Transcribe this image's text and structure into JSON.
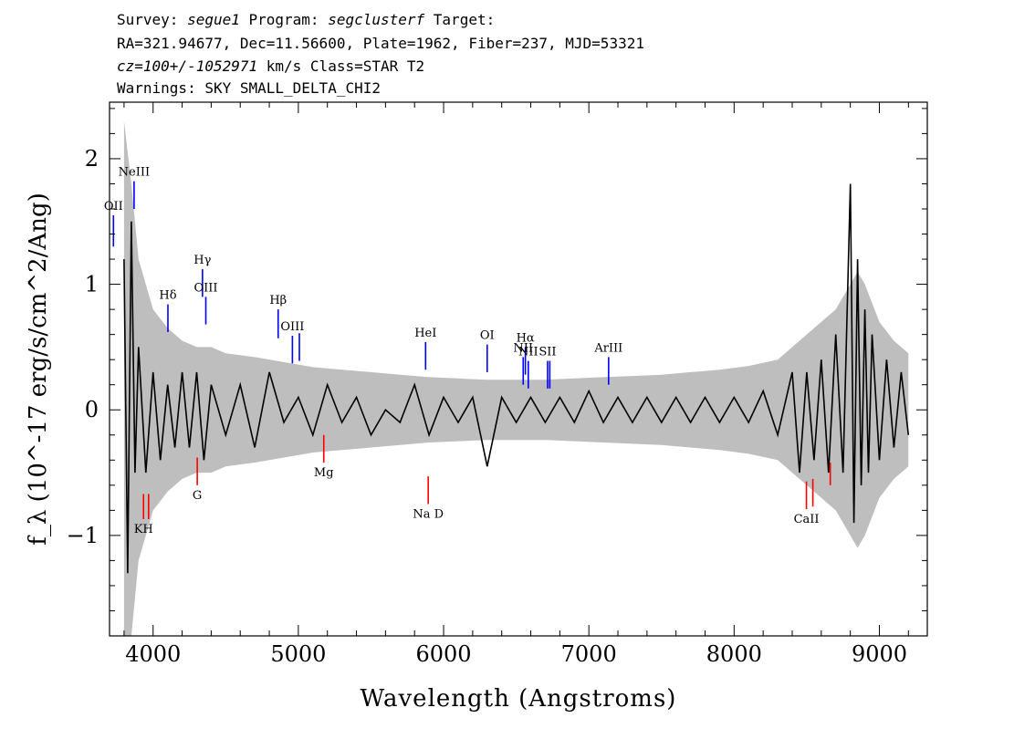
{
  "header": {
    "line1": {
      "prefix": "Survey: ",
      "survey": "segue1",
      "mid": " Program: ",
      "program": "segclusterf",
      "suffix": " Target:"
    },
    "line2": "RA=321.94677, Dec=11.56600, Plate=1962, Fiber=237, MJD=53321",
    "line3": {
      "cz": "cz=100+/-1052971",
      "rest": " km/s Class=STAR T2"
    },
    "line4": "Warnings: SKY SMALL_DELTA_CHI2"
  },
  "colors": {
    "flux": "#000000",
    "error": "#bebebe",
    "emission": "#0000ff",
    "absorption": "#ff0000",
    "axis": "#000000"
  },
  "chart_data": {
    "type": "line",
    "xlabel": "Wavelength (Angstroms)",
    "ylabel": "f_λ (10^-17 erg/s/cm^2/Ang)",
    "xlim": [
      3700,
      9330
    ],
    "ylim": [
      -1.8,
      2.45
    ],
    "xticks": [
      4000,
      5000,
      6000,
      7000,
      8000,
      9000
    ],
    "yticks": [
      -1,
      0,
      1,
      2
    ],
    "series": [
      {
        "role": "flux",
        "x": [
          3800,
          3825,
          3850,
          3875,
          3900,
          3950,
          4000,
          4050,
          4100,
          4150,
          4200,
          4250,
          4300,
          4350,
          4400,
          4500,
          4600,
          4700,
          4800,
          4900,
          5000,
          5100,
          5200,
          5300,
          5400,
          5500,
          5600,
          5700,
          5800,
          5900,
          6000,
          6100,
          6200,
          6300,
          6400,
          6500,
          6600,
          6700,
          6800,
          6900,
          7000,
          7100,
          7200,
          7300,
          7400,
          7500,
          7600,
          7700,
          7800,
          7900,
          8000,
          8100,
          8200,
          8300,
          8400,
          8450,
          8500,
          8550,
          8600,
          8650,
          8700,
          8750,
          8800,
          8825,
          8850,
          8875,
          8900,
          8925,
          8950,
          9000,
          9050,
          9100,
          9150,
          9200
        ],
        "y": [
          1.2,
          -1.3,
          1.5,
          -0.5,
          0.5,
          -0.5,
          0.3,
          -0.4,
          0.2,
          -0.3,
          0.3,
          -0.3,
          0.3,
          -0.4,
          0.2,
          -0.2,
          0.2,
          -0.3,
          0.3,
          -0.1,
          0.1,
          -0.2,
          0.2,
          -0.1,
          0.1,
          -0.2,
          0.0,
          -0.1,
          0.2,
          -0.2,
          0.1,
          -0.1,
          0.1,
          -0.45,
          0.1,
          -0.1,
          0.1,
          -0.1,
          0.1,
          -0.1,
          0.15,
          -0.1,
          0.1,
          -0.1,
          0.1,
          -0.1,
          0.1,
          -0.1,
          0.1,
          -0.1,
          0.1,
          -0.1,
          0.15,
          -0.2,
          0.3,
          -0.5,
          0.3,
          -0.4,
          0.4,
          -0.5,
          0.6,
          -0.5,
          1.8,
          -0.9,
          1.2,
          -0.6,
          0.8,
          -0.5,
          0.6,
          -0.4,
          0.4,
          -0.3,
          0.3,
          -0.2
        ]
      },
      {
        "role": "error",
        "x": [
          3800,
          3850,
          3900,
          4000,
          4100,
          4200,
          4300,
          4400,
          4500,
          4700,
          4900,
          5100,
          5300,
          5500,
          5700,
          5900,
          6100,
          6300,
          6500,
          6700,
          6900,
          7100,
          7300,
          7500,
          7700,
          7900,
          8100,
          8300,
          8400,
          8500,
          8600,
          8700,
          8800,
          8850,
          8900,
          9000,
          9100,
          9200
        ],
        "y": [
          2.3,
          1.8,
          1.2,
          0.8,
          0.65,
          0.55,
          0.5,
          0.5,
          0.45,
          0.42,
          0.38,
          0.34,
          0.32,
          0.3,
          0.28,
          0.26,
          0.25,
          0.24,
          0.24,
          0.24,
          0.25,
          0.26,
          0.27,
          0.28,
          0.3,
          0.32,
          0.35,
          0.4,
          0.5,
          0.6,
          0.7,
          0.8,
          1.0,
          1.1,
          1.0,
          0.7,
          0.55,
          0.45
        ]
      }
    ],
    "emission_lines": [
      {
        "label": "OII",
        "wave": 3727,
        "y_bottom": 1.3,
        "y_top": 1.55
      },
      {
        "label": "NeIII",
        "wave": 3869,
        "y_bottom": 1.6,
        "y_top": 1.82
      },
      {
        "label": "Hδ",
        "wave": 4102,
        "y_bottom": 0.62,
        "y_top": 0.84
      },
      {
        "label": "Hγ",
        "wave": 4340,
        "y_bottom": 0.9,
        "y_top": 1.12
      },
      {
        "label": "OIII",
        "wave": 4363,
        "y_bottom": 0.68,
        "y_top": 0.9
      },
      {
        "label": "Hβ",
        "wave": 4861,
        "y_bottom": 0.57,
        "y_top": 0.8
      },
      {
        "label": "OIII",
        "wave": 4959,
        "y_bottom": 0.37,
        "y_top": 0.59
      },
      {
        "label": "",
        "wave": 5007,
        "y_bottom": 0.39,
        "y_top": 0.61
      },
      {
        "label": "HeI",
        "wave": 5876,
        "y_bottom": 0.32,
        "y_top": 0.54
      },
      {
        "label": "OI",
        "wave": 6300,
        "y_bottom": 0.3,
        "y_top": 0.52
      },
      {
        "label": "NII",
        "wave": 6548,
        "y_bottom": 0.2,
        "y_top": 0.42
      },
      {
        "label": "Hα",
        "wave": 6563,
        "y_bottom": 0.28,
        "y_top": 0.5
      },
      {
        "label": "NII",
        "wave": 6583,
        "y_bottom": 0.17,
        "y_top": 0.39
      },
      {
        "label": "SII",
        "wave": 6716,
        "y_bottom": 0.17,
        "y_top": 0.39
      },
      {
        "label": "",
        "wave": 6731,
        "y_bottom": 0.17,
        "y_top": 0.39
      },
      {
        "label": "ArIII",
        "wave": 7136,
        "y_bottom": 0.2,
        "y_top": 0.42
      }
    ],
    "absorption_lines": [
      {
        "label": "KH",
        "wave": 3934,
        "y_top": -0.67,
        "y_bottom": -0.87
      },
      {
        "label": "",
        "wave": 3969,
        "y_top": -0.67,
        "y_bottom": -0.87
      },
      {
        "label": "G",
        "wave": 4304,
        "y_top": -0.38,
        "y_bottom": -0.6
      },
      {
        "label": "Mg",
        "wave": 5175,
        "y_top": -0.2,
        "y_bottom": -0.42
      },
      {
        "label": "Na D",
        "wave": 5894,
        "y_top": -0.53,
        "y_bottom": -0.75
      },
      {
        "label": "CaII",
        "wave": 8498,
        "y_top": -0.57,
        "y_bottom": -0.79
      },
      {
        "label": "",
        "wave": 8542,
        "y_top": -0.55,
        "y_bottom": -0.77
      },
      {
        "label": "",
        "wave": 8662,
        "y_top": -0.42,
        "y_bottom": -0.6
      }
    ]
  }
}
